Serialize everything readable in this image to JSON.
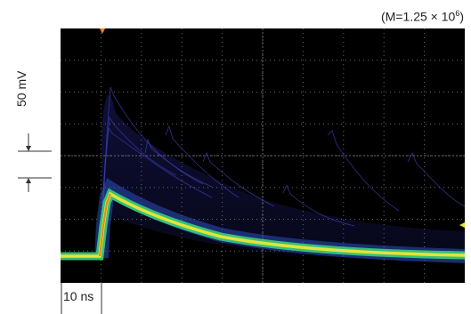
{
  "gain_note": {
    "prefix": "(M=1.25 × 10",
    "exponent": "6",
    "suffix": ")"
  },
  "vertical_scale": {
    "label": "50 mV"
  },
  "horizontal_scale": {
    "label": "10 ns"
  },
  "display": {
    "style": "oscilloscope persistence plot",
    "background_color": "#000000",
    "grid_color": "#6a6a6a",
    "persistence_colors": [
      "#2a2a8a",
      "#3a6fd0",
      "#37d27a",
      "#e6e23a",
      "#e8861e"
    ],
    "trigger_marker_color": "#e8861e",
    "marker_icon": "trigger-arrow-icon"
  }
}
